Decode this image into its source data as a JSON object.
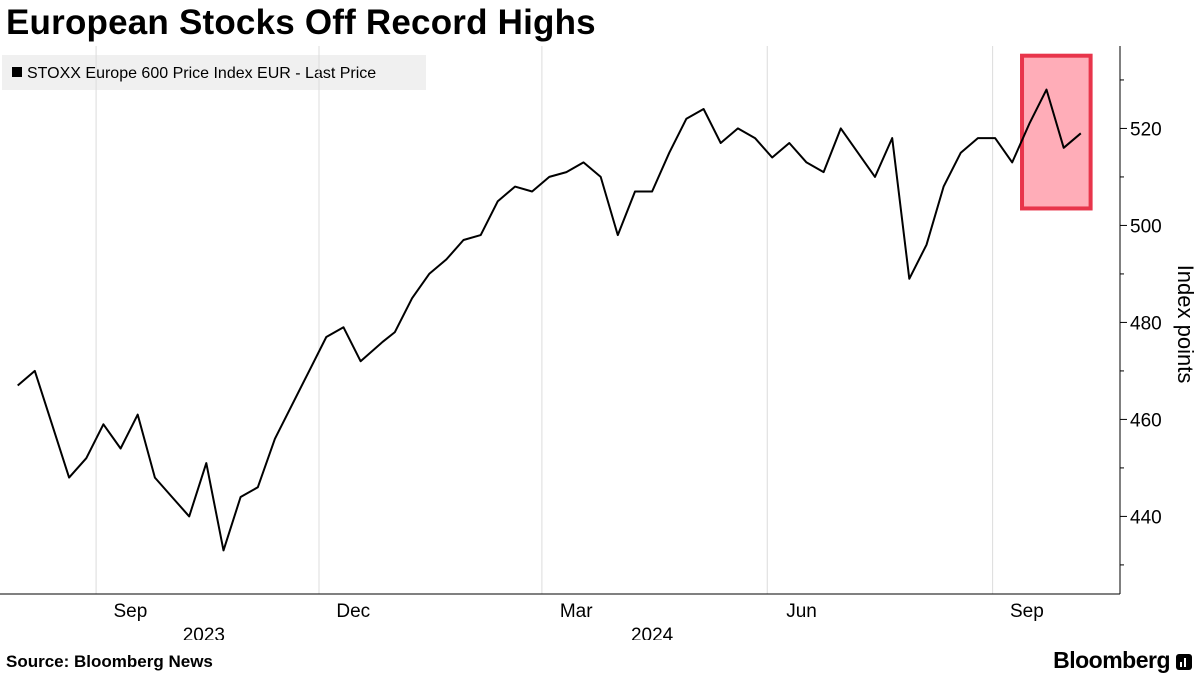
{
  "title": "European Stocks Off Record Highs",
  "source": "Source: Bloomberg News",
  "brand": "Bloomberg",
  "chart_data": {
    "type": "line",
    "title": "European Stocks Off Record Highs",
    "ylabel": "Index points",
    "ylim": [
      424,
      537
    ],
    "yticks": [
      440,
      460,
      480,
      500,
      520
    ],
    "month_ticks": [
      "Sep",
      "Dec",
      "Mar",
      "Jun",
      "Sep"
    ],
    "year_labels": [
      "2023",
      "2024"
    ],
    "legend": "top-left",
    "line_color": "#000000",
    "highlight_color": "#e8354b",
    "series": [
      {
        "name": "STOXX Europe 600 Price Index EUR - Last Price",
        "x": [
          "2023-07-31",
          "2023-08-07",
          "2023-08-14",
          "2023-08-21",
          "2023-08-28",
          "2023-09-04",
          "2023-09-11",
          "2023-09-18",
          "2023-09-25",
          "2023-10-02",
          "2023-10-09",
          "2023-10-16",
          "2023-10-23",
          "2023-10-30",
          "2023-11-06",
          "2023-11-13",
          "2023-11-20",
          "2023-11-27",
          "2023-12-04",
          "2023-12-11",
          "2023-12-18",
          "2023-12-27",
          "2024-01-01",
          "2024-01-08",
          "2024-01-15",
          "2024-01-22",
          "2024-01-29",
          "2024-02-05",
          "2024-02-12",
          "2024-02-19",
          "2024-02-26",
          "2024-03-04",
          "2024-03-11",
          "2024-03-18",
          "2024-03-25",
          "2024-04-01",
          "2024-04-08",
          "2024-04-15",
          "2024-04-22",
          "2024-04-29",
          "2024-05-06",
          "2024-05-13",
          "2024-05-20",
          "2024-05-27",
          "2024-06-03",
          "2024-06-10",
          "2024-06-17",
          "2024-06-24",
          "2024-07-01",
          "2024-07-08",
          "2024-07-15",
          "2024-07-22",
          "2024-07-29",
          "2024-08-05",
          "2024-08-12",
          "2024-08-19",
          "2024-08-26",
          "2024-09-02",
          "2024-09-09",
          "2024-09-16",
          "2024-09-23",
          "2024-09-30",
          "2024-10-07"
        ],
        "values": [
          467,
          470,
          459,
          448,
          452,
          459,
          454,
          461,
          448,
          444,
          440,
          451,
          433,
          444,
          446,
          456,
          463,
          470,
          477,
          479,
          472,
          476,
          478,
          485,
          490,
          493,
          497,
          498,
          505,
          508,
          507,
          510,
          511,
          513,
          510,
          498,
          507,
          507,
          515,
          522,
          524,
          517,
          520,
          518,
          514,
          517,
          513,
          511,
          520,
          515,
          510,
          518,
          489,
          496,
          508,
          515,
          518,
          518,
          513,
          521,
          528,
          516,
          519
        ]
      }
    ],
    "annotations": [
      {
        "type": "highlight-box",
        "x_start": "2024-09-13",
        "x_end": "2024-10-11",
        "y_start": 503.5,
        "y_end": 535
      }
    ]
  }
}
